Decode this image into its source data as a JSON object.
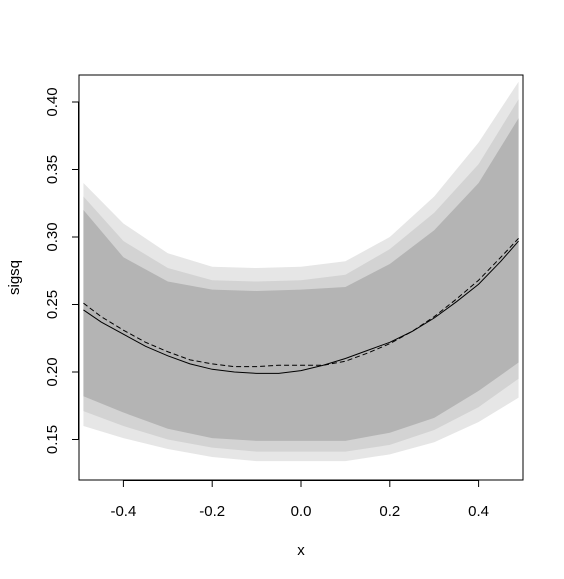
{
  "chart_data": {
    "type": "area",
    "title": "",
    "xlabel": "x",
    "ylabel": "sigsq",
    "xlim": [
      -0.5,
      0.5
    ],
    "ylim": [
      0.12,
      0.42
    ],
    "x_ticks": [
      -0.4,
      -0.2,
      0.0,
      0.2,
      0.4
    ],
    "x_tick_labels": [
      "-0.4",
      "-0.2",
      "0.0",
      "0.2",
      "0.4"
    ],
    "y_ticks": [
      0.15,
      0.2,
      0.25,
      0.3,
      0.35,
      0.4
    ],
    "y_tick_labels": [
      "0.15",
      "0.20",
      "0.25",
      "0.30",
      "0.35",
      "0.40"
    ],
    "grid": false,
    "x": [
      -0.49,
      -0.4,
      -0.3,
      -0.2,
      -0.1,
      0.0,
      0.1,
      0.2,
      0.3,
      0.4,
      0.49
    ],
    "bands": [
      {
        "color": "#e6e6e6",
        "lower": [
          0.16,
          0.151,
          0.143,
          0.137,
          0.134,
          0.134,
          0.134,
          0.139,
          0.148,
          0.163,
          0.181
        ],
        "upper": [
          0.34,
          0.31,
          0.288,
          0.278,
          0.277,
          0.278,
          0.282,
          0.3,
          0.33,
          0.37,
          0.415
        ]
      },
      {
        "color": "#d3d3d3",
        "lower": [
          0.171,
          0.16,
          0.15,
          0.144,
          0.141,
          0.141,
          0.141,
          0.146,
          0.157,
          0.174,
          0.195
        ],
        "upper": [
          0.33,
          0.297,
          0.277,
          0.268,
          0.267,
          0.268,
          0.272,
          0.291,
          0.318,
          0.354,
          0.402
        ]
      },
      {
        "color": "#b4b4b4",
        "lower": [
          0.182,
          0.17,
          0.158,
          0.151,
          0.149,
          0.149,
          0.149,
          0.155,
          0.166,
          0.186,
          0.207
        ],
        "upper": [
          0.32,
          0.285,
          0.267,
          0.261,
          0.26,
          0.261,
          0.263,
          0.28,
          0.305,
          0.34,
          0.388
        ]
      }
    ],
    "series": [
      {
        "style": "solid",
        "color": "#000000",
        "x": [
          -0.49,
          -0.45,
          -0.4,
          -0.35,
          -0.3,
          -0.25,
          -0.2,
          -0.15,
          -0.1,
          -0.05,
          0.0,
          0.05,
          0.1,
          0.15,
          0.2,
          0.25,
          0.3,
          0.35,
          0.4,
          0.45,
          0.49
        ],
        "values": [
          0.246,
          0.237,
          0.228,
          0.219,
          0.212,
          0.206,
          0.202,
          0.2,
          0.199,
          0.199,
          0.201,
          0.205,
          0.21,
          0.216,
          0.222,
          0.23,
          0.24,
          0.252,
          0.265,
          0.282,
          0.297
        ]
      },
      {
        "style": "dashed",
        "color": "#000000",
        "x": [
          -0.49,
          -0.45,
          -0.4,
          -0.35,
          -0.3,
          -0.25,
          -0.2,
          -0.15,
          -0.1,
          -0.05,
          0.0,
          0.05,
          0.1,
          0.15,
          0.2,
          0.25,
          0.3,
          0.35,
          0.4,
          0.45,
          0.49
        ],
        "values": [
          0.251,
          0.241,
          0.231,
          0.222,
          0.215,
          0.209,
          0.206,
          0.204,
          0.204,
          0.205,
          0.205,
          0.205,
          0.208,
          0.214,
          0.221,
          0.23,
          0.241,
          0.254,
          0.268,
          0.285,
          0.299
        ]
      }
    ]
  }
}
